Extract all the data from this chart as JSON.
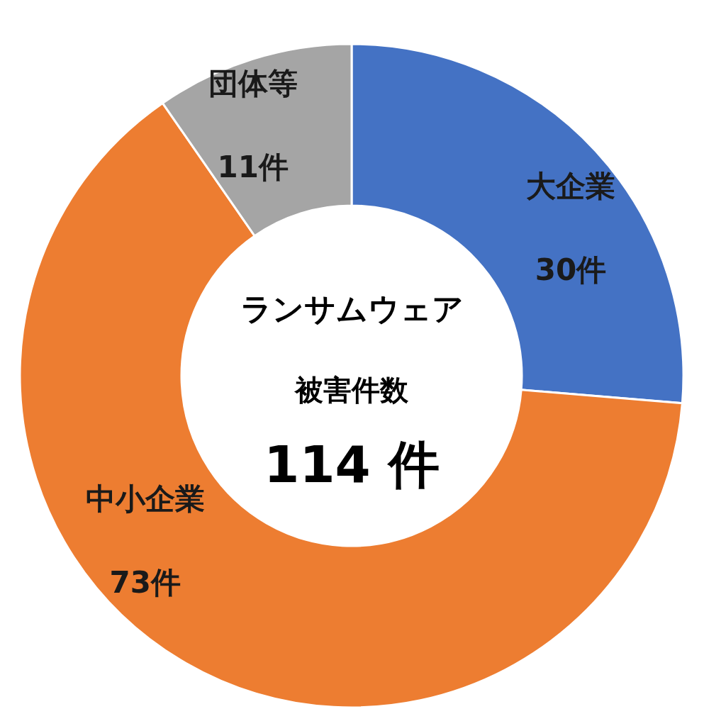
{
  "chart_data": {
    "type": "donut",
    "categories": [
      "大企業",
      "中小企業",
      "団体等"
    ],
    "values": [
      30,
      73,
      11
    ],
    "colors": [
      "#4472c4",
      "#ed7d31",
      "#a5a5a5"
    ],
    "value_labels": [
      "30件",
      "73件",
      "11件"
    ],
    "annotations": [
      "ランサムウェア",
      "被害件数",
      "114 件"
    ]
  }
}
